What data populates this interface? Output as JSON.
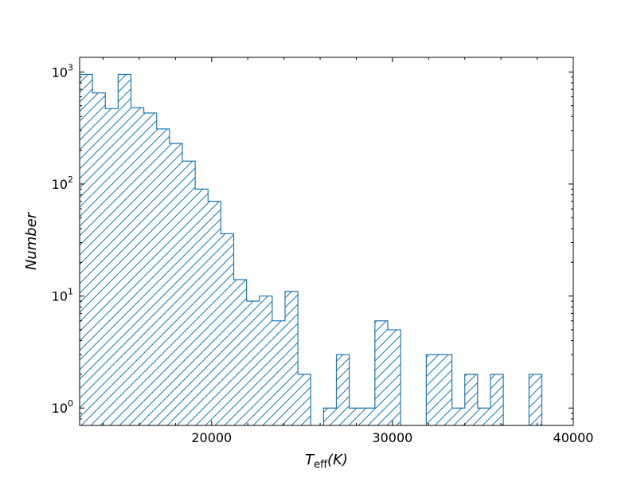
{
  "chart_data": {
    "type": "histogram",
    "xlabel": "T_eff(K)",
    "xlabel_main": "T",
    "xlabel_sub": "eff",
    "xlabel_unit": "(K)",
    "ylabel": "Number",
    "y_scale": "log",
    "xlim": [
      12700,
      40000
    ],
    "ylim": [
      0.7,
      1350
    ],
    "x_ticks": [
      20000,
      30000,
      40000
    ],
    "x_tick_labels": [
      "20000",
      "30000",
      "40000"
    ],
    "y_ticks": [
      1,
      10,
      100,
      1000
    ],
    "y_tick_labels": [
      {
        "base": "10",
        "exp": "0"
      },
      {
        "base": "10",
        "exp": "1"
      },
      {
        "base": "10",
        "exp": "2"
      },
      {
        "base": "10",
        "exp": "3"
      }
    ],
    "color": "#1f77b4",
    "hatch": "diagonal",
    "bin_edges": [
      12700,
      13410,
      14120,
      14830,
      15540,
      16250,
      16960,
      17670,
      18380,
      19090,
      19800,
      20510,
      21220,
      21930,
      22640,
      23350,
      24060,
      24770,
      25480,
      26190,
      26900,
      27610,
      28320,
      29030,
      29740,
      30450,
      31160,
      31870,
      32580,
      33290,
      34000,
      34710,
      35420,
      36130,
      36840,
      37550,
      38260
    ],
    "values": [
      950,
      650,
      470,
      950,
      480,
      430,
      310,
      230,
      160,
      90,
      70,
      36,
      14,
      9,
      10,
      6,
      11,
      2,
      0,
      1,
      3,
      1,
      1,
      6,
      5,
      0,
      0,
      3,
      3,
      1,
      2,
      1,
      2,
      0,
      0,
      2
    ]
  }
}
